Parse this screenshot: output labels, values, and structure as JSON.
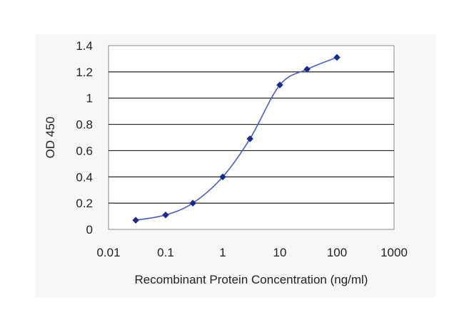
{
  "chart_data": {
    "type": "line",
    "xlabel": "Recombinant Protein Concentration (ng/ml)",
    "ylabel": "OD 450",
    "x_scale": "log",
    "xlim": [
      0.01,
      1000
    ],
    "ylim": [
      0,
      1.4
    ],
    "x_ticks": [
      "0.01",
      "0.1",
      "1",
      "10",
      "100",
      "1000"
    ],
    "y_ticks": [
      "0",
      "0.2",
      "0.4",
      "0.6",
      "0.8",
      "1",
      "1.2",
      "1.4"
    ],
    "grid": "horizontal",
    "series": [
      {
        "x": [
          0.03,
          0.1,
          0.3,
          1,
          3,
          10,
          30,
          100
        ],
        "values": [
          0.07,
          0.11,
          0.2,
          0.4,
          0.69,
          1.1,
          1.22,
          1.31
        ]
      }
    ],
    "colors": {
      "line": "#4a5fc1",
      "marker": "#1a2a8c",
      "grid": "#222222",
      "plot_bg": "#ffffff"
    }
  }
}
